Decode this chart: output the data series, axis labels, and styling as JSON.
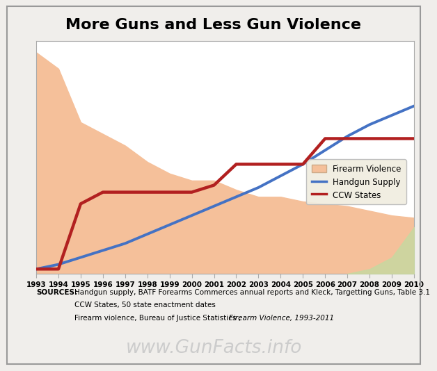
{
  "title": "More Guns and Less Gun Violence",
  "years": [
    1993,
    1994,
    1995,
    1996,
    1997,
    1998,
    1999,
    2000,
    2001,
    2002,
    2003,
    2004,
    2005,
    2006,
    2007,
    2008,
    2009,
    2010
  ],
  "firearm_violence": [
    95,
    88,
    65,
    60,
    55,
    48,
    43,
    40,
    40,
    36,
    33,
    33,
    31,
    30,
    29,
    27,
    25,
    24
  ],
  "firearm_violence_color": "#f5c09a",
  "handgun_supply": [
    2,
    4,
    7,
    10,
    13,
    17,
    21,
    25,
    29,
    33,
    37,
    42,
    47,
    53,
    59,
    64,
    68,
    72
  ],
  "handgun_supply_color": "#4472c4",
  "ccw_states": [
    2,
    2,
    30,
    35,
    35,
    35,
    35,
    35,
    38,
    47,
    47,
    47,
    47,
    58,
    58,
    58,
    58,
    58
  ],
  "ccw_states_color": "#b22020",
  "green_bump_years": [
    2007,
    2008,
    2009,
    2010
  ],
  "green_bump_vals": [
    0,
    2,
    7,
    20
  ],
  "green_bump_color": "#c8d8a0",
  "background_color": "#f0eeeb",
  "plot_bg_color": "#ffffff",
  "ylim": [
    0,
    100
  ],
  "xlim_min": 1993,
  "xlim_max": 2010,
  "sources_line1": "Handgun supply, BATF Forearms Commerces annual reports and Kleck, Targetting Guns, Table 3.1",
  "sources_line2": "CCW States, 50 state enactment dates",
  "sources_line3_plain": "Firearm violence, Bureau of Justice Statistics , ",
  "sources_line3_italic": "Firearm Violence, 1993-2011",
  "website": "www.GunFacts.info",
  "legend_labels": [
    "Firearm Violence",
    "Handgun Supply",
    "CCW States"
  ],
  "legend_bg": "#f0ede0"
}
